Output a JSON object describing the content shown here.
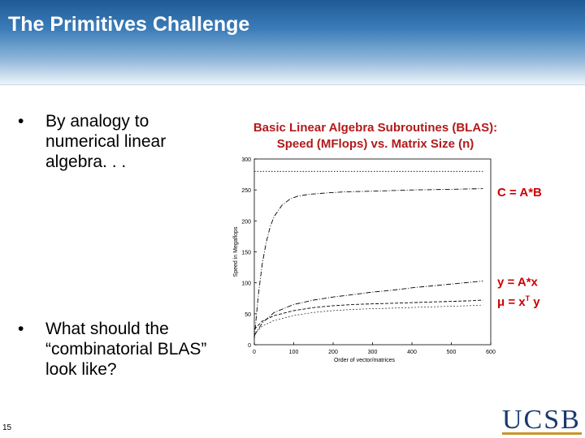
{
  "slide": {
    "title": "The Primitives Challenge",
    "page_number": "15"
  },
  "bullets": [
    {
      "marker": "•",
      "text": "By analogy to numerical linear algebra. . ."
    },
    {
      "marker": "•",
      "text": "What should the “combinatorial BLAS” look like?"
    }
  ],
  "chart_title": {
    "line1": "Basic Linear Algebra Subroutines (BLAS):",
    "line2": "Speed  (MFlops) vs. Matrix Size (n)"
  },
  "logo": {
    "text": "UCSB",
    "color": "#1a3a6e",
    "accent": "#c8962e"
  },
  "colors": {
    "title_text": "#ffffff",
    "chart_title": "#b21a1a",
    "annotation": "#cc0000"
  },
  "chart_data": {
    "type": "line",
    "xlabel": "Order of vector/matrices",
    "ylabel": "Speed in Megaflops",
    "xlim": [
      0,
      600
    ],
    "ylim": [
      0,
      300
    ],
    "xticks": [
      0,
      100,
      200,
      300,
      400,
      500,
      600
    ],
    "yticks": [
      0,
      50,
      100,
      150,
      200,
      250,
      300
    ],
    "grid": false,
    "series": [
      {
        "name": "C = A*B",
        "style": "dash-dot",
        "x": [
          0,
          10,
          20,
          30,
          40,
          50,
          70,
          90,
          110,
          140,
          180,
          230,
          300,
          400,
          500,
          580
        ],
        "y": [
          10,
          80,
          130,
          165,
          190,
          207,
          225,
          235,
          240,
          243,
          245,
          247,
          248,
          250,
          251,
          252
        ]
      },
      {
        "name": "y = A*x",
        "style": "dash-dot",
        "x": [
          0,
          20,
          50,
          100,
          150,
          200,
          250,
          300,
          350,
          400,
          450,
          500,
          550,
          580
        ],
        "y": [
          15,
          35,
          52,
          65,
          72,
          77,
          81,
          85,
          88,
          92,
          95,
          98,
          101,
          103
        ]
      },
      {
        "name": "μ = xT y",
        "style": "dashed",
        "x": [
          0,
          20,
          50,
          100,
          150,
          200,
          250,
          300,
          350,
          400,
          450,
          500,
          550,
          580
        ],
        "y": [
          25,
          38,
          47,
          55,
          60,
          63,
          65,
          66,
          67,
          68,
          69,
          70,
          71,
          72
        ]
      },
      {
        "name": "peak",
        "style": "dotted",
        "x": [
          0,
          580
        ],
        "y": [
          280,
          280
        ]
      }
    ],
    "annotations": [
      {
        "label_main": "C  =  A*B",
        "series": 0
      },
      {
        "label_main": "y  =  A*x",
        "series": 1
      },
      {
        "label_main": "μ  =  x",
        "label_sup": "T",
        "label_end": " y",
        "series": 2
      }
    ]
  }
}
